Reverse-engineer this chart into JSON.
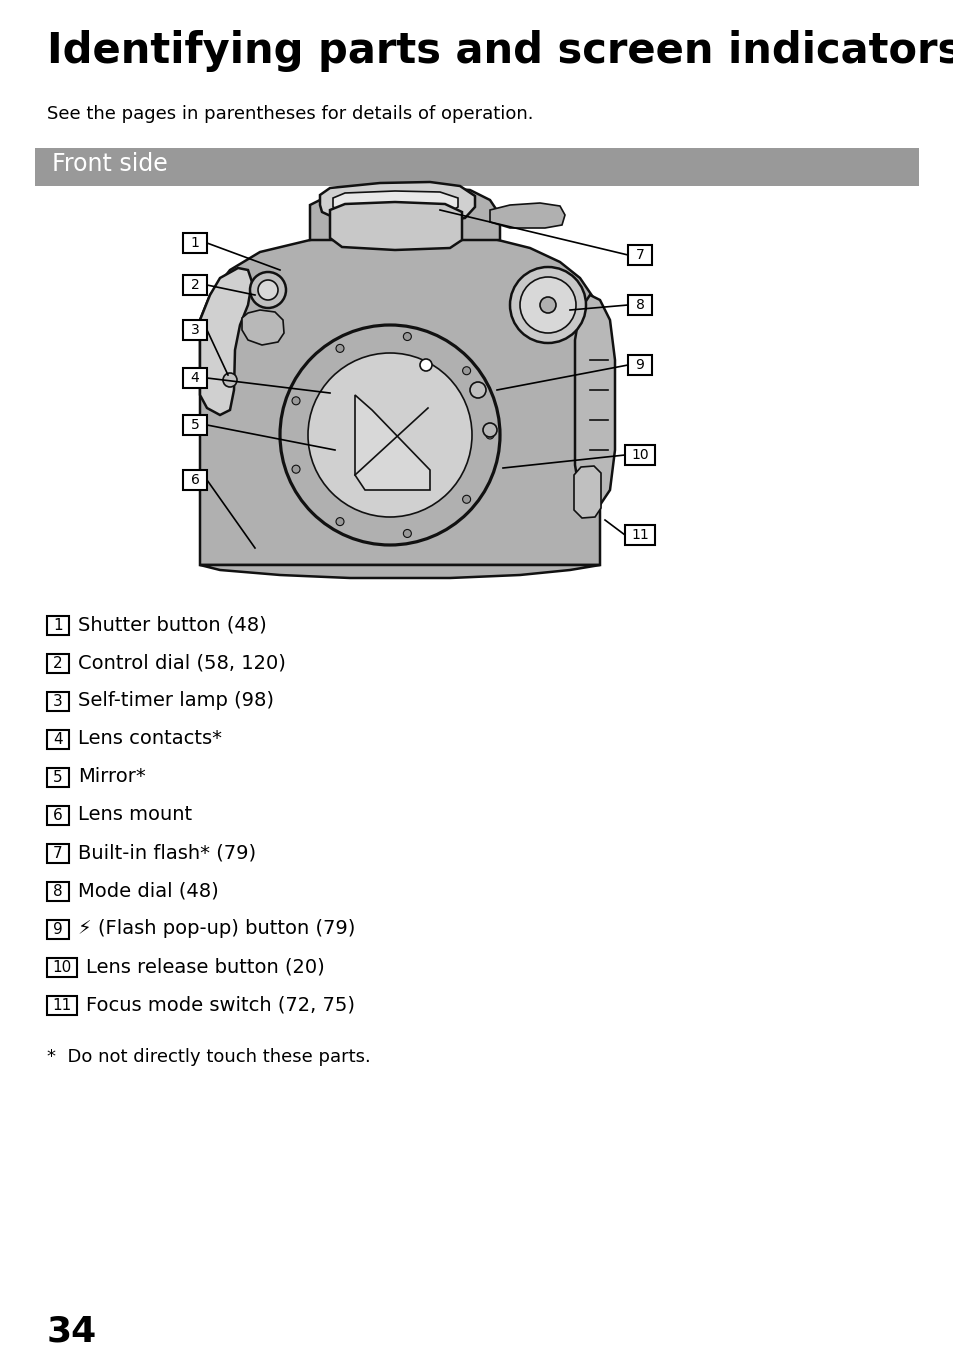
{
  "title": "Identifying parts and screen indicators",
  "subtitle": "See the pages in parentheses for details of operation.",
  "section_header": "Front side",
  "section_header_bg": "#999999",
  "section_header_fg": "#ffffff",
  "bg_color": "#ffffff",
  "text_color": "#000000",
  "page_number": "34",
  "camera_fill": "#b0b0b0",
  "camera_fill_light": "#d0d0d0",
  "camera_fill_dark": "#888888",
  "camera_stroke": "#111111",
  "items": [
    {
      "num": "1",
      "text": "Shutter button (48)"
    },
    {
      "num": "2",
      "text": "Control dial (58, 120)"
    },
    {
      "num": "3",
      "text": "Self-timer lamp (98)"
    },
    {
      "num": "4",
      "text": "Lens contacts*"
    },
    {
      "num": "5",
      "text": "Mirror*"
    },
    {
      "num": "6",
      "text": "Lens mount"
    },
    {
      "num": "7",
      "text": "Built-in flash* (79)"
    },
    {
      "num": "8",
      "text": "Mode dial (48)"
    },
    {
      "num": "9",
      "text": "♥ (Flash pop-up) button (79)"
    },
    {
      "num": "10",
      "text": "Lens release button (20)"
    },
    {
      "num": "11",
      "text": "Focus mode switch (72, 75)"
    }
  ],
  "footnote": "*  Do not directly touch these parts.",
  "title_fontsize": 30,
  "subtitle_fontsize": 13,
  "header_fontsize": 17,
  "item_fontsize": 14,
  "item_num_fontsize": 11,
  "page_fontsize": 26
}
